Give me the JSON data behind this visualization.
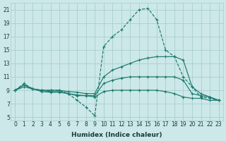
{
  "xlabel": "Humidex (Indice chaleur)",
  "bg_color": "#cce8e8",
  "grid_color": "#aacece",
  "line_color": "#1a7a6e",
  "xlim": [
    -0.5,
    23.5
  ],
  "ylim": [
    4.5,
    22
  ],
  "xticks": [
    0,
    1,
    2,
    3,
    4,
    5,
    6,
    7,
    8,
    9,
    10,
    11,
    12,
    13,
    14,
    15,
    16,
    17,
    18,
    19,
    20,
    21,
    22,
    23
  ],
  "yticks": [
    5,
    7,
    9,
    11,
    13,
    15,
    17,
    19,
    21
  ],
  "lines": [
    {
      "x": [
        0,
        1,
        2,
        3,
        4,
        5,
        6,
        7,
        8,
        9,
        10,
        11,
        12,
        13,
        14,
        15,
        16,
        17,
        18,
        19,
        20,
        21,
        22,
        23
      ],
      "y": [
        9.0,
        10.0,
        9.2,
        9.0,
        9.0,
        9.0,
        8.5,
        7.5,
        6.5,
        5.2,
        15.5,
        17.0,
        18.0,
        19.5,
        21.0,
        21.2,
        19.5,
        15.0,
        14.0,
        11.0,
        9.5,
        8.0,
        7.8,
        7.5
      ],
      "linestyle": "--",
      "marker": "+"
    },
    {
      "x": [
        0,
        1,
        2,
        3,
        4,
        5,
        6,
        7,
        8,
        9,
        10,
        11,
        12,
        13,
        14,
        15,
        16,
        17,
        18,
        19,
        20,
        21,
        22,
        23
      ],
      "y": [
        9.0,
        9.8,
        9.2,
        9.0,
        9.0,
        9.0,
        8.8,
        8.7,
        8.5,
        8.5,
        11.0,
        12.0,
        12.5,
        13.0,
        13.5,
        13.8,
        14.0,
        14.0,
        14.0,
        13.5,
        9.5,
        8.5,
        8.0,
        7.5
      ],
      "linestyle": "-",
      "marker": "+"
    },
    {
      "x": [
        0,
        1,
        2,
        3,
        4,
        5,
        6,
        7,
        8,
        9,
        10,
        11,
        12,
        13,
        14,
        15,
        16,
        17,
        18,
        19,
        20,
        21,
        22,
        23
      ],
      "y": [
        9.0,
        9.8,
        9.2,
        9.0,
        8.8,
        8.8,
        8.5,
        8.2,
        8.2,
        8.2,
        10.0,
        10.5,
        10.8,
        11.0,
        11.0,
        11.0,
        11.0,
        11.0,
        11.0,
        10.5,
        8.5,
        8.2,
        8.0,
        7.5
      ],
      "linestyle": "-",
      "marker": "+"
    },
    {
      "x": [
        0,
        1,
        2,
        3,
        4,
        5,
        6,
        7,
        8,
        9,
        10,
        11,
        12,
        13,
        14,
        15,
        16,
        17,
        18,
        19,
        20,
        21,
        22,
        23
      ],
      "y": [
        9.0,
        9.5,
        9.2,
        8.8,
        8.7,
        8.7,
        8.5,
        8.3,
        8.2,
        8.0,
        8.8,
        9.0,
        9.0,
        9.0,
        9.0,
        9.0,
        9.0,
        8.8,
        8.5,
        8.0,
        7.8,
        7.8,
        7.5,
        7.5
      ],
      "linestyle": "-",
      "marker": "+"
    }
  ]
}
